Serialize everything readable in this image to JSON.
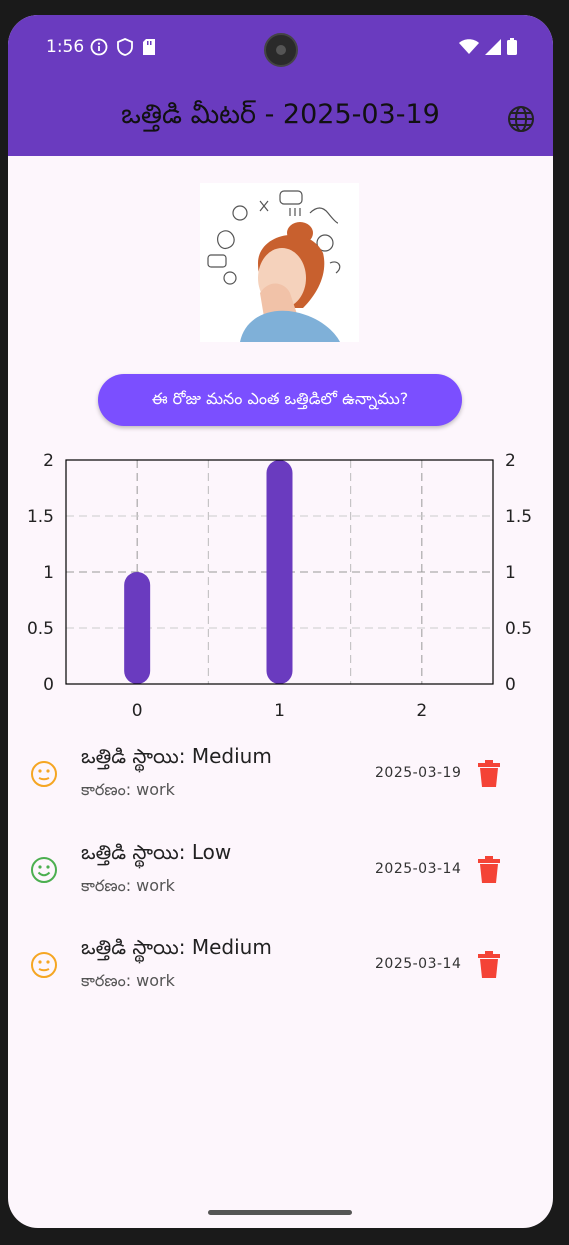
{
  "status_bar": {
    "time": "1:56"
  },
  "app_bar": {
    "title": "ఒత్తిడి మీటర్ - 2025-03-19"
  },
  "ask_button": {
    "label": "ఈ రోజు మనం ఎంత ఒత్తిడిలో ఉన్నాము?"
  },
  "chart_data": {
    "type": "bar",
    "x": [
      0,
      1
    ],
    "values": [
      1,
      2
    ],
    "x_ticks": [
      "0",
      "1",
      "2"
    ],
    "y_ticks": [
      "0",
      "0.5",
      "1",
      "1.5",
      "2"
    ],
    "ylim": [
      0,
      2
    ],
    "xlim": [
      -0.5,
      2.5
    ],
    "grid": true,
    "bar_color": "#6a3bbf"
  },
  "entries": [
    {
      "title": "ఒత్తిడి స్థాయి: Medium",
      "reason": "కారణం: work",
      "date": "2025-03-19",
      "mood": "neutral-face-icon",
      "color": "#f5a623"
    },
    {
      "title": "ఒత్తిడి స్థాయి: Low",
      "reason": "కారణం: work",
      "date": "2025-03-14",
      "mood": "smile-face-icon",
      "color": "#4caf50"
    },
    {
      "title": "ఒత్తిడి స్థాయి: Medium",
      "reason": "కారణం: work",
      "date": "2025-03-14",
      "mood": "neutral-face-icon",
      "color": "#f5a623"
    }
  ],
  "colors": {
    "app_bar": "#6a3bbf",
    "button": "#7b4fff",
    "delete": "#f44336"
  }
}
